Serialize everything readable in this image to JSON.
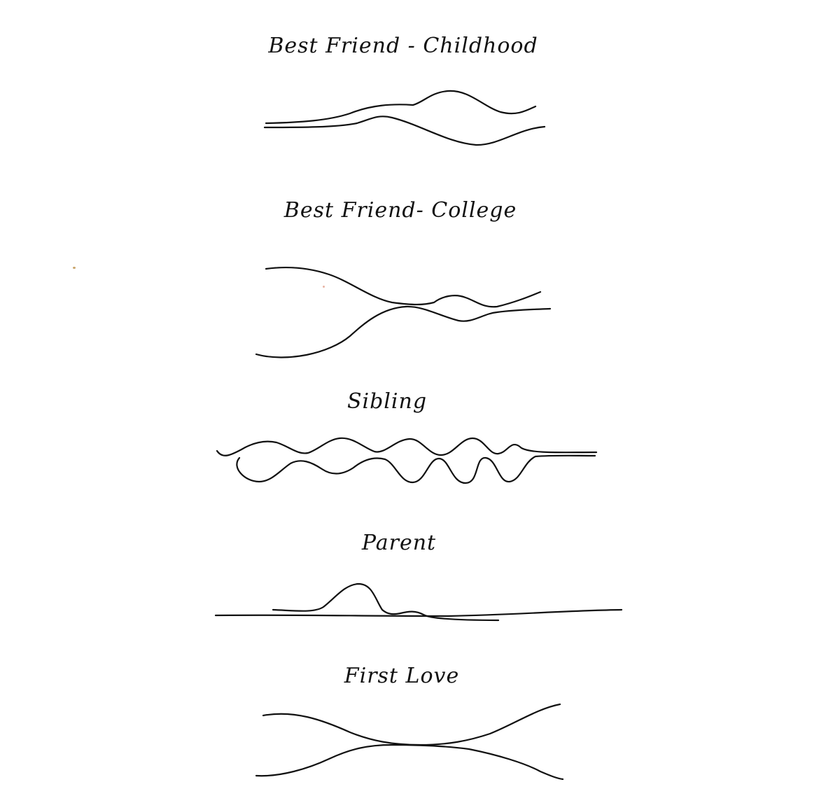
{
  "diagrams": [
    {
      "id": "best-friend-childhood",
      "title": "Best Friend - Childhood"
    },
    {
      "id": "best-friend-college",
      "title": "Best Friend- College"
    },
    {
      "id": "sibling",
      "title": "Sibling"
    },
    {
      "id": "parent",
      "title": "Parent"
    },
    {
      "id": "first-love",
      "title": "First Love"
    }
  ],
  "colors": {
    "ink": "#111111",
    "paper": "#ffffff"
  }
}
